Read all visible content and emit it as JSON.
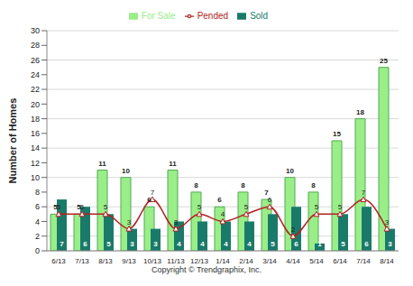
{
  "chart_data": {
    "type": "bar",
    "y_label": "Number of Homes",
    "annotation": "Copyright © Trendgraphix, Inc.",
    "categories": [
      "6/13",
      "7/13",
      "8/13",
      "9/13",
      "10/13",
      "11/13",
      "12/13",
      "1/14",
      "2/14",
      "3/14",
      "4/14",
      "5/14",
      "6/14",
      "7/14",
      "8/14"
    ],
    "series": [
      {
        "name": "For Sale",
        "type": "bar",
        "color": "#99ee88",
        "values": [
          5,
          5,
          11,
          10,
          6,
          11,
          8,
          6,
          8,
          7,
          10,
          8,
          15,
          18,
          25
        ]
      },
      {
        "name": "Sold",
        "type": "bar",
        "color": "#1a7a6a",
        "values": [
          7,
          6,
          5,
          3,
          3,
          4,
          4,
          4,
          4,
          5,
          6,
          1,
          5,
          6,
          3
        ]
      },
      {
        "name": "Pended",
        "type": "line",
        "color": "#b22222",
        "marker": "triangle",
        "values": [
          5,
          5,
          5,
          3,
          7,
          3,
          5,
          4,
          5,
          6,
          2,
          5,
          5,
          7,
          3
        ]
      }
    ],
    "ylim": [
      0,
      30
    ],
    "yticks": [
      0,
      2,
      4,
      6,
      8,
      10,
      12,
      14,
      16,
      18,
      20,
      22,
      24,
      26,
      28,
      30
    ],
    "grid": true,
    "legend": "top",
    "data_labels": true
  }
}
